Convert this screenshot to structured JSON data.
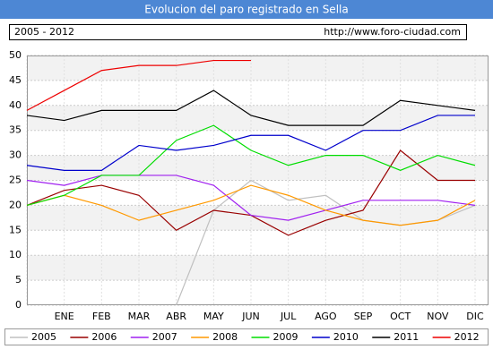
{
  "chart_data": {
    "type": "line",
    "title": "Evolucion del paro registrado en Sella",
    "subtitle": "2005 - 2012",
    "source": "http://www.foro-ciudad.com",
    "categories": [
      null,
      "ENE",
      "FEB",
      "MAR",
      "ABR",
      "MAY",
      "JUN",
      "JUL",
      "AGO",
      "SEP",
      "OCT",
      "NOV",
      "DIC"
    ],
    "ylim": [
      0,
      50
    ],
    "yticks": [
      0,
      5,
      10,
      15,
      20,
      25,
      30,
      35,
      40,
      45,
      50
    ],
    "grid": true,
    "series": [
      {
        "name": "2005",
        "color": "#c0c0c0",
        "values": [
          null,
          null,
          null,
          null,
          0,
          19,
          25,
          21,
          22,
          17,
          16,
          17,
          20
        ]
      },
      {
        "name": "2006",
        "color": "#990000",
        "values": [
          20,
          23,
          24,
          22,
          15,
          19,
          18,
          14,
          17,
          19,
          31,
          25,
          25
        ]
      },
      {
        "name": "2007",
        "color": "#a020f0",
        "values": [
          25,
          24,
          26,
          26,
          26,
          24,
          18,
          17,
          19,
          21,
          21,
          21,
          20
        ]
      },
      {
        "name": "2008",
        "color": "#ff9900",
        "values": [
          20,
          22,
          20,
          17,
          19,
          21,
          24,
          22,
          19,
          17,
          16,
          17,
          21
        ]
      },
      {
        "name": "2009",
        "color": "#00dd00",
        "values": [
          20,
          22,
          26,
          26,
          33,
          36,
          31,
          28,
          30,
          30,
          27,
          30,
          28
        ]
      },
      {
        "name": "2010",
        "color": "#0000cc",
        "values": [
          28,
          27,
          27,
          32,
          31,
          32,
          34,
          34,
          31,
          35,
          35,
          38,
          38
        ]
      },
      {
        "name": "2011",
        "color": "#000000",
        "values": [
          38,
          37,
          39,
          39,
          39,
          43,
          38,
          36,
          36,
          36,
          41,
          40,
          39
        ]
      },
      {
        "name": "2012",
        "color": "#ee0000",
        "values": [
          39,
          43,
          47,
          48,
          48,
          49,
          49,
          null,
          null,
          null,
          null,
          null,
          null
        ]
      }
    ]
  }
}
